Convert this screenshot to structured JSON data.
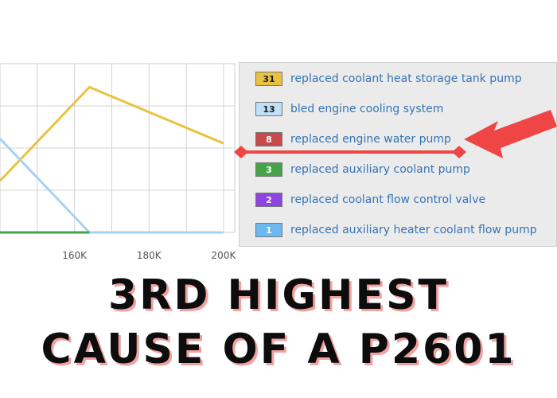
{
  "chart_data": {
    "type": "line",
    "x_ticks": [
      {
        "value": 160000,
        "label": "160K"
      },
      {
        "value": 180000,
        "label": "180K"
      },
      {
        "value": 200000,
        "label": "200K"
      }
    ],
    "xlim": [
      140000,
      203000
    ],
    "ylim": [
      0,
      36
    ],
    "grid": true,
    "series": [
      {
        "name": "replaced coolant heat storage tank pump",
        "color": "#e9c340",
        "points": [
          [
            140000,
            11
          ],
          [
            164000,
            31
          ],
          [
            200000,
            19
          ]
        ]
      },
      {
        "name": "bled engine cooling system",
        "color": "#a9d2f2",
        "points": [
          [
            140000,
            20
          ],
          [
            164000,
            0
          ],
          [
            200000,
            0
          ]
        ]
      },
      {
        "name": "replaced auxiliary coolant pump",
        "color": "#45a34c",
        "points": [
          [
            140000,
            0
          ],
          [
            164000,
            0
          ]
        ]
      }
    ]
  },
  "legend": {
    "items": [
      {
        "count": "31",
        "label": "replaced coolant heat storage tank pump",
        "color": "#e9c340",
        "text_color": "#1a1a1a"
      },
      {
        "count": "13",
        "label": "bled engine cooling system",
        "color": "#bfe0f7",
        "text_color": "#1a1a1a"
      },
      {
        "count": "8",
        "label": "replaced engine water pump",
        "color": "#c84a4a",
        "text_color": "#ffffff"
      },
      {
        "count": "3",
        "label": "replaced auxiliary coolant pump",
        "color": "#45a34c",
        "text_color": "#ffffff"
      },
      {
        "count": "2",
        "label": "replaced coolant flow control valve",
        "color": "#8e44e0",
        "text_color": "#ffffff"
      },
      {
        "count": "1",
        "label": "replaced auxiliary heater coolant flow pump",
        "color": "#6cb8f2",
        "text_color": "#ffffff"
      }
    ]
  },
  "annotation": {
    "color": "#f04545"
  },
  "headline": {
    "line1": "3RD HIGHEST",
    "line2": "CAUSE OF A P2601"
  }
}
